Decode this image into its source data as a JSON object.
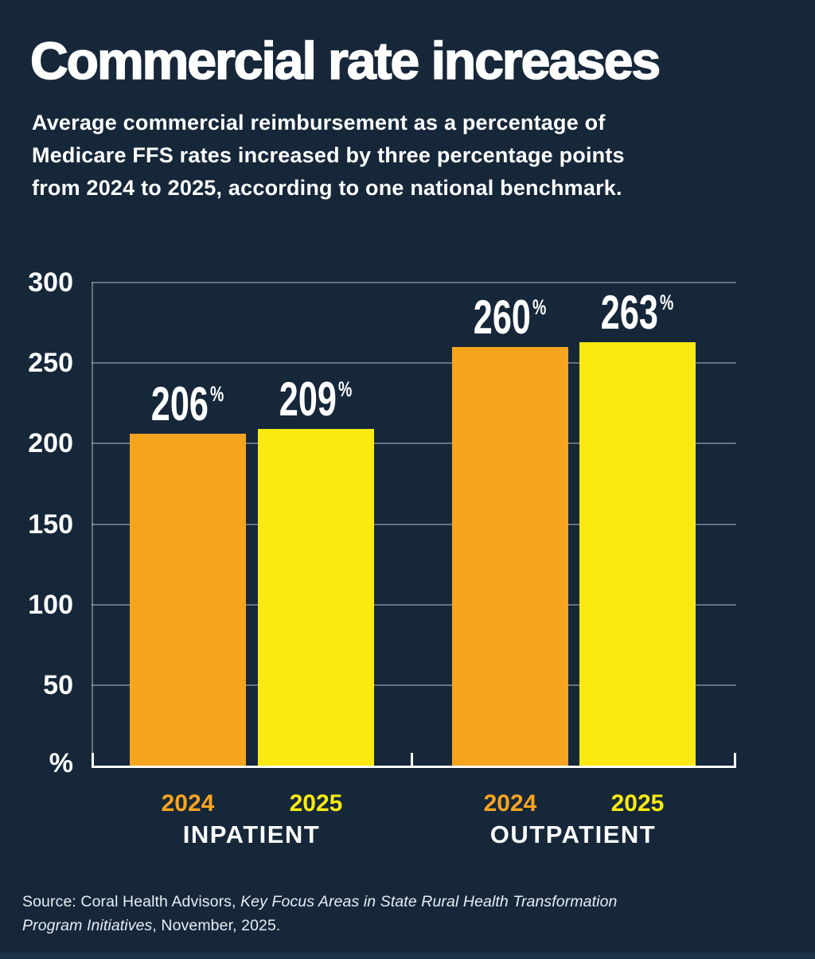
{
  "title": "Commercial rate increases",
  "subtitle": "Average commercial reimbursement as a percentage of\nMedicare FFS rates increased by three percentage points\nfrom 2024 to 2025, according to one national benchmark.",
  "source": {
    "line1_regular": "Source: Coral Health Advisors, ",
    "line1_italic": "Key Focus Areas in State Rural Health Transformation",
    "line2_italic": "Program Initiatives",
    "line2_regular": ", November, 2025."
  },
  "colors": {
    "background": "#16273A",
    "orange": "#F7A41F",
    "yellow": "#FAEA12",
    "text": "#FFFFFF",
    "gridline": "rgba(255,255,255,0.35)"
  },
  "chart_data": {
    "type": "bar",
    "title": "Commercial rate increases",
    "unit": "%",
    "ylim": [
      0,
      300
    ],
    "yticks": [
      300,
      250,
      200,
      150,
      100,
      50
    ],
    "y_axis_unit_label": "%",
    "grid": true,
    "legend_position": "none",
    "categories": [
      "INPATIENT 2024",
      "INPATIENT 2025",
      "OUTPATIENT 2024",
      "OUTPATIENT 2025"
    ],
    "values": [
      206,
      209,
      260,
      263
    ],
    "groups": [
      {
        "label": "INPATIENT",
        "bars": [
          {
            "year": "2024",
            "value": 206,
            "value_label": "206",
            "pct": "%",
            "color_key": "orange"
          },
          {
            "year": "2025",
            "value": 209,
            "value_label": "209",
            "pct": "%",
            "color_key": "yellow"
          }
        ]
      },
      {
        "label": "OUTPATIENT",
        "bars": [
          {
            "year": "2024",
            "value": 260,
            "value_label": "260",
            "pct": "%",
            "color_key": "orange"
          },
          {
            "year": "2025",
            "value": 263,
            "value_label": "263",
            "pct": "%",
            "color_key": "yellow"
          }
        ]
      }
    ]
  }
}
